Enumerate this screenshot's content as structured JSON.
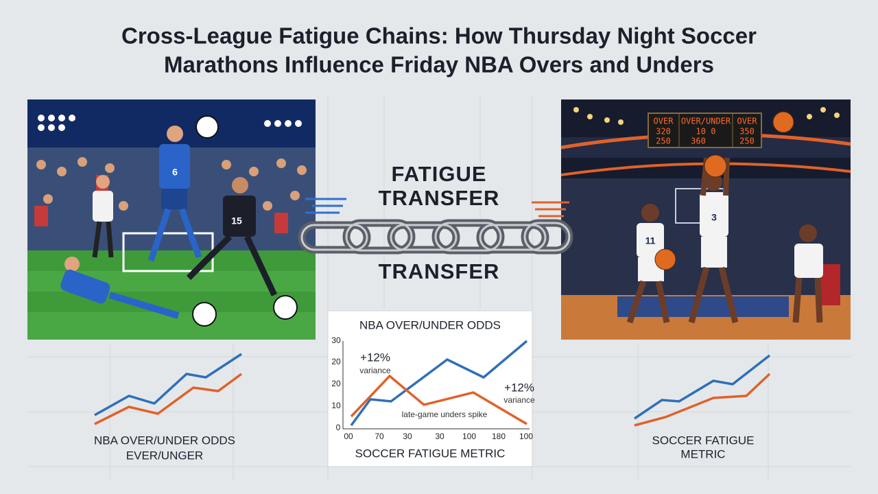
{
  "header": {
    "title_lines": [
      "Cross-League Fatigue Chains: How Thursday Night Soccer",
      "Marathons Influence Friday NBA Overs and Unders"
    ]
  },
  "soccer_scene": {
    "jersey_numbers": [
      "6",
      "15"
    ]
  },
  "basketball_scene": {
    "scoreboard": [
      "OVER",
      "OVER/UNDER",
      "OVER",
      "320",
      "250",
      "10 0",
      "360",
      "350",
      "250"
    ],
    "jersey_numbers": [
      "11",
      "3"
    ]
  },
  "link": {
    "top_lines": [
      "FATIGUE",
      "TRANSFER"
    ],
    "bottom_line": "TRANSFER"
  },
  "center_chart": {
    "title": "NBA OVER/UNDER ODDS",
    "y_labels": [
      "30",
      "20",
      "20",
      "10",
      "0"
    ],
    "x_labels": [
      "00",
      "70",
      "30",
      "30",
      "100",
      "180",
      "100"
    ],
    "x_label": "SOCCER FATIGUE METRIC",
    "annotations": [
      "+12%",
      "variance",
      "+12%",
      "variance",
      "late-game unders spike"
    ]
  },
  "left_chart": {
    "caption_lines": [
      "NBA OVER/UNDER ODDS",
      "EVER/UNGER"
    ]
  },
  "right_chart": {
    "caption_lines": [
      "SOCCER FATIGUE",
      "METRIC"
    ]
  }
}
